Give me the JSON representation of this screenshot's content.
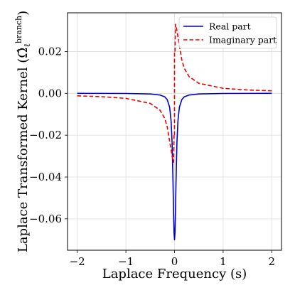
{
  "chart_data": {
    "type": "line",
    "title": "",
    "xlabel": "Laplace Frequency (s)",
    "ylabel": "Laplace Transformed Kernel (",
    "ylabel_symbol": "Ω̂",
    "ylabel_sub": "ℓ",
    "ylabel_sup": "branch",
    "ylabel_close": ")",
    "xlim": [
      -2.2,
      2.2
    ],
    "ylim": [
      -0.075,
      0.0385
    ],
    "xticks": [
      -2,
      -1,
      0,
      1,
      2
    ],
    "xtick_labels": [
      "−2",
      "−1",
      "0",
      "1",
      "2"
    ],
    "yticks": [
      -0.06,
      -0.04,
      -0.02,
      0.0,
      0.02
    ],
    "ytick_labels": [
      "−0.06",
      "−0.04",
      "−0.02",
      "0.00",
      "0.02"
    ],
    "grid": true,
    "legend_position": "top-right",
    "series": [
      {
        "name": "Real part",
        "style": "solid",
        "color": "#0000cc",
        "x": [
          -2.0,
          -1.5,
          -1.0,
          -0.5,
          -0.3,
          -0.2,
          -0.15,
          -0.1,
          -0.07,
          -0.05,
          -0.03,
          -0.02,
          -0.01,
          0.0,
          0.01,
          0.02,
          0.03,
          0.05,
          0.07,
          0.1,
          0.15,
          0.2,
          0.3,
          0.5,
          1.0,
          1.5,
          2.0
        ],
        "y": [
          -2e-05,
          -3e-05,
          -7e-05,
          -0.0003,
          -0.0008,
          -0.0017,
          -0.003,
          -0.0067,
          -0.0133,
          -0.0235,
          -0.0434,
          -0.0561,
          -0.0667,
          -0.07,
          -0.0667,
          -0.0561,
          -0.0434,
          -0.0235,
          -0.0133,
          -0.0067,
          -0.003,
          -0.0017,
          -0.0008,
          -0.0003,
          -7e-05,
          -3e-05,
          -2e-05
        ]
      },
      {
        "name": "Imaginary part",
        "style": "dashed",
        "color": "#ee0000",
        "x": [
          -2.0,
          -1.5,
          -1.0,
          -0.5,
          -0.3,
          -0.2,
          -0.15,
          -0.1,
          -0.07,
          -0.05,
          -0.03,
          -0.02,
          -0.015,
          -0.01,
          0.01,
          0.015,
          0.02,
          0.03,
          0.05,
          0.07,
          0.1,
          0.15,
          0.2,
          0.3,
          0.5,
          1.0,
          1.5,
          2.0
        ],
        "y": [
          -0.0012,
          -0.0016,
          -0.0024,
          -0.0048,
          -0.008,
          -0.012,
          -0.016,
          -0.023,
          -0.027,
          -0.03,
          -0.032,
          -0.033,
          -0.028,
          -0.02,
          0.02,
          0.028,
          0.033,
          0.032,
          0.03,
          0.027,
          0.023,
          0.016,
          0.012,
          0.008,
          0.0048,
          0.0024,
          0.0016,
          0.0012
        ]
      }
    ]
  }
}
